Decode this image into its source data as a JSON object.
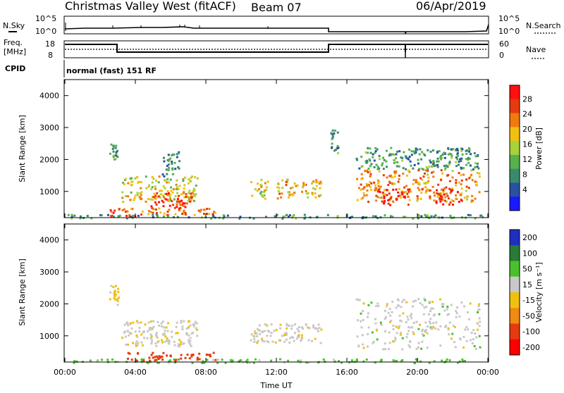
{
  "header": {
    "title": "Christmas Valley West (fitACF)",
    "beam": "Beam 07",
    "date": "06/Apr/2019"
  },
  "noise_panel": {
    "left_label": "N.Sky",
    "right_label": "N.Search",
    "left_ticks": [
      "10^5",
      "10^0"
    ],
    "right_ticks": [
      "10^5",
      "10^0"
    ]
  },
  "freq_panel": {
    "left_label_line1": "Freq.",
    "left_label_line2": "[MHz]",
    "right_label": "Nave",
    "left_ticks": [
      "18",
      "8"
    ],
    "right_ticks": [
      "60",
      "0"
    ]
  },
  "cpid_panel": {
    "label": "CPID",
    "text": "normal (fast) 151 RF"
  },
  "colors": {
    "power": [
      "#1a1aff",
      "#2a50a0",
      "#3b8a6e",
      "#56b24c",
      "#a8d23a",
      "#f0c010",
      "#f07a10",
      "#e63a10",
      "#ff1010"
    ],
    "velocity": [
      "#1f2fbf",
      "#2a7a3a",
      "#4bc02e",
      "#c8c8c8",
      "#f0c010",
      "#f08a10",
      "#e63a10",
      "#ff0000"
    ]
  },
  "chart_data": [
    {
      "type": "heatmap",
      "ylabel": "Slant Range [km]",
      "ylim": [
        180,
        4500
      ],
      "yticks": [
        "1000",
        "2000",
        "3000",
        "4000"
      ],
      "xlabel": "",
      "xlim": [
        "00:00",
        "24:00"
      ],
      "colorbar": {
        "label": "Power [dB]",
        "ticks": [
          "4",
          "8",
          "12",
          "16",
          "20",
          "24",
          "28"
        ]
      },
      "regions": [
        {
          "t0": 5.5,
          "t1": 6.5,
          "r0": 1500,
          "r1": 2300,
          "power": 8
        },
        {
          "t0": 3.2,
          "t1": 7.5,
          "r0": 700,
          "r1": 1500,
          "power": 18
        },
        {
          "t0": 4.8,
          "t1": 7.2,
          "r0": 500,
          "r1": 1000,
          "power": 28
        },
        {
          "t0": 2.5,
          "t1": 8.5,
          "r0": 250,
          "r1": 500,
          "power": 24
        },
        {
          "t0": 0.0,
          "t1": 24.0,
          "r0": 180,
          "r1": 300,
          "power": 10
        },
        {
          "t0": 10.5,
          "t1": 11.5,
          "r0": 800,
          "r1": 1400,
          "power": 18
        },
        {
          "t0": 12.0,
          "t1": 14.5,
          "r0": 800,
          "r1": 1400,
          "power": 20
        },
        {
          "t0": 15.0,
          "t1": 15.5,
          "r0": 2200,
          "r1": 3000,
          "power": 10
        },
        {
          "t0": 16.5,
          "t1": 23.5,
          "r0": 1700,
          "r1": 2400,
          "power": 10
        },
        {
          "t0": 16.5,
          "t1": 23.5,
          "r0": 700,
          "r1": 1700,
          "power": 22
        },
        {
          "t0": 17.5,
          "t1": 19.5,
          "r0": 600,
          "r1": 1100,
          "power": 28
        },
        {
          "t0": 21.0,
          "t1": 22.5,
          "r0": 600,
          "r1": 1100,
          "power": 28
        },
        {
          "t0": 2.5,
          "t1": 3.0,
          "r0": 2000,
          "r1": 2500,
          "power": 10
        }
      ]
    },
    {
      "type": "heatmap",
      "ylabel": "Slant Range [km]",
      "ylim": [
        180,
        4500
      ],
      "yticks": [
        "1000",
        "2000",
        "3000",
        "4000"
      ],
      "xlabel": "Time UT",
      "xlim": [
        "00:00",
        "24:00"
      ],
      "xticks": [
        "00:00",
        "04:00",
        "08:00",
        "12:00",
        "16:00",
        "20:00",
        "00:00"
      ],
      "colorbar": {
        "label": "Velocity [m s⁻¹]",
        "ticks": [
          "200",
          "100",
          "50",
          "15",
          "-15",
          "-50",
          "-100",
          "-200"
        ]
      },
      "regions": [
        {
          "t0": 3.2,
          "t1": 7.5,
          "r0": 700,
          "r1": 1500,
          "velocity": -5
        },
        {
          "t0": 2.5,
          "t1": 3.0,
          "r0": 2000,
          "r1": 2600,
          "velocity": -30
        },
        {
          "t0": 0.0,
          "t1": 24.0,
          "r0": 180,
          "r1": 300,
          "velocity": 30
        },
        {
          "t0": 3.5,
          "t1": 8.5,
          "r0": 250,
          "r1": 500,
          "velocity": -150
        },
        {
          "t0": 10.5,
          "t1": 14.5,
          "r0": 800,
          "r1": 1400,
          "velocity": -5
        },
        {
          "t0": 16.5,
          "t1": 23.5,
          "r0": 600,
          "r1": 2200,
          "velocity": 0
        }
      ]
    }
  ]
}
